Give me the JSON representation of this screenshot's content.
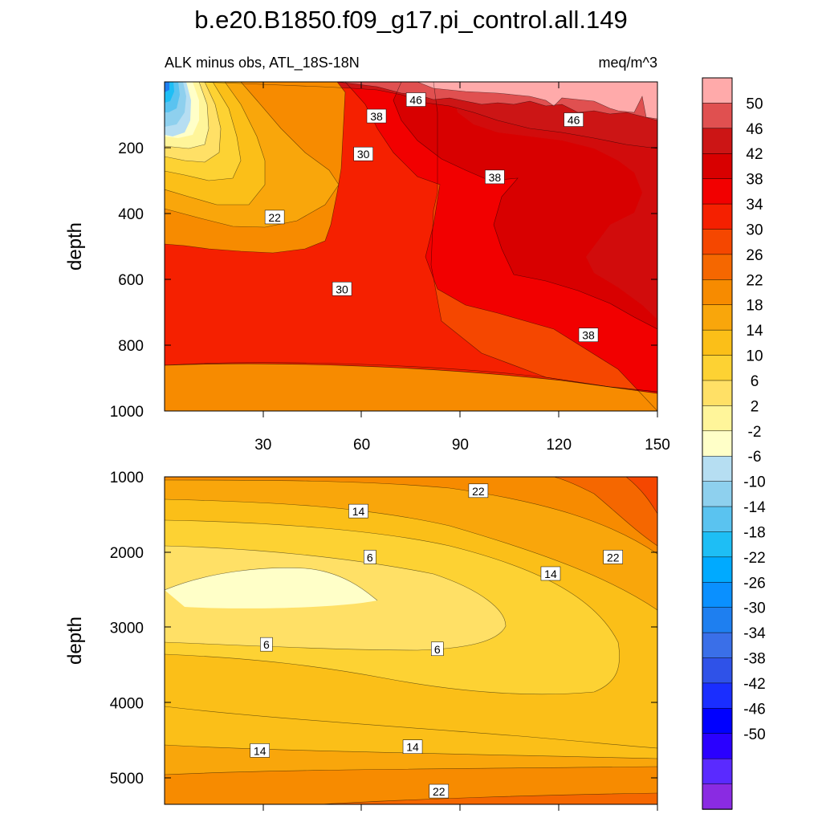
{
  "chart_data": {
    "type": "contour",
    "title": "b.e20.B1850.f09_g17.pi_control.all.149",
    "subtitle_left": "ALK minus obs, ATL_18S-18N",
    "subtitle_right": "meq/m^3",
    "colorbar": {
      "levels": [
        -50,
        -46,
        -42,
        -38,
        -34,
        -30,
        -26,
        -22,
        -18,
        -14,
        -10,
        -6,
        -2,
        2,
        6,
        10,
        14,
        18,
        22,
        26,
        30,
        34,
        38,
        42,
        46,
        50
      ],
      "labels": [
        "-50",
        "-46",
        "-42",
        "-38",
        "-34",
        "-30",
        "-26",
        "-22",
        "-18",
        "-14",
        "-10",
        "-6",
        "-2",
        "2",
        "6",
        "10",
        "14",
        "18",
        "22",
        "26",
        "30",
        "34",
        "38",
        "42",
        "46",
        "50"
      ],
      "colors": [
        "#8a2be2",
        "#5a2aff",
        "#2a00ff",
        "#0000ff",
        "#1a2eff",
        "#2f52e8",
        "#3a6fe8",
        "#1e7ff0",
        "#0a90ff",
        "#00aaff",
        "#1ebef5",
        "#5ac3f0",
        "#8ed0ee",
        "#b6def2",
        "#ffffc8",
        "#fff59a",
        "#ffe066",
        "#fdd233",
        "#fbbf18",
        "#f9a60b",
        "#f78b00",
        "#f56700",
        "#f54700",
        "#f52000",
        "#f20000",
        "#d80000",
        "#cc1515",
        "#e05050",
        "#ffaaaa"
      ]
    },
    "panels": [
      {
        "name": "upper",
        "ylabel": "depth",
        "xlim": [
          0,
          150
        ],
        "ylim": [
          1000,
          0
        ],
        "xticks": [
          30,
          60,
          90,
          120,
          150
        ],
        "xtick_labels": [
          "30",
          "60",
          "90",
          "120",
          "150"
        ],
        "yticks": [
          200,
          400,
          600,
          800,
          1000
        ],
        "ytick_labels": [
          "200",
          "400",
          "600",
          "800",
          "1000"
        ],
        "contour_labels": [
          {
            "text": "46",
            "x": 76.5,
            "y": 55
          },
          {
            "text": "46",
            "x": 124.5,
            "y": 116
          },
          {
            "text": "38",
            "x": 64.5,
            "y": 105
          },
          {
            "text": "30",
            "x": 60.5,
            "y": 220
          },
          {
            "text": "38",
            "x": 100.5,
            "y": 290
          },
          {
            "text": "22",
            "x": 33.5,
            "y": 412
          },
          {
            "text": "30",
            "x": 54,
            "y": 630
          },
          {
            "text": "38",
            "x": 129,
            "y": 770
          }
        ]
      },
      {
        "name": "lower",
        "ylabel": "depth",
        "xlim": [
          0,
          150
        ],
        "ylim": [
          5350,
          1000
        ],
        "yticks": [
          1000,
          2000,
          3000,
          4000,
          5000
        ],
        "ytick_labels": [
          "1000",
          "2000",
          "3000",
          "4000",
          "5000"
        ],
        "contour_labels": [
          {
            "text": "22",
            "x": 95.5,
            "y": 1190
          },
          {
            "text": "14",
            "x": 59,
            "y": 1460
          },
          {
            "text": "22",
            "x": 136.5,
            "y": 2070
          },
          {
            "text": "6",
            "x": 62.5,
            "y": 2070
          },
          {
            "text": "14",
            "x": 117.5,
            "y": 2290
          },
          {
            "text": "6",
            "x": 31,
            "y": 3230
          },
          {
            "text": "6",
            "x": 83,
            "y": 3290
          },
          {
            "text": "14",
            "x": 29,
            "y": 4640
          },
          {
            "text": "14",
            "x": 75.5,
            "y": 4590
          },
          {
            "text": "22",
            "x": 83.5,
            "y": 5180
          }
        ]
      }
    ]
  }
}
